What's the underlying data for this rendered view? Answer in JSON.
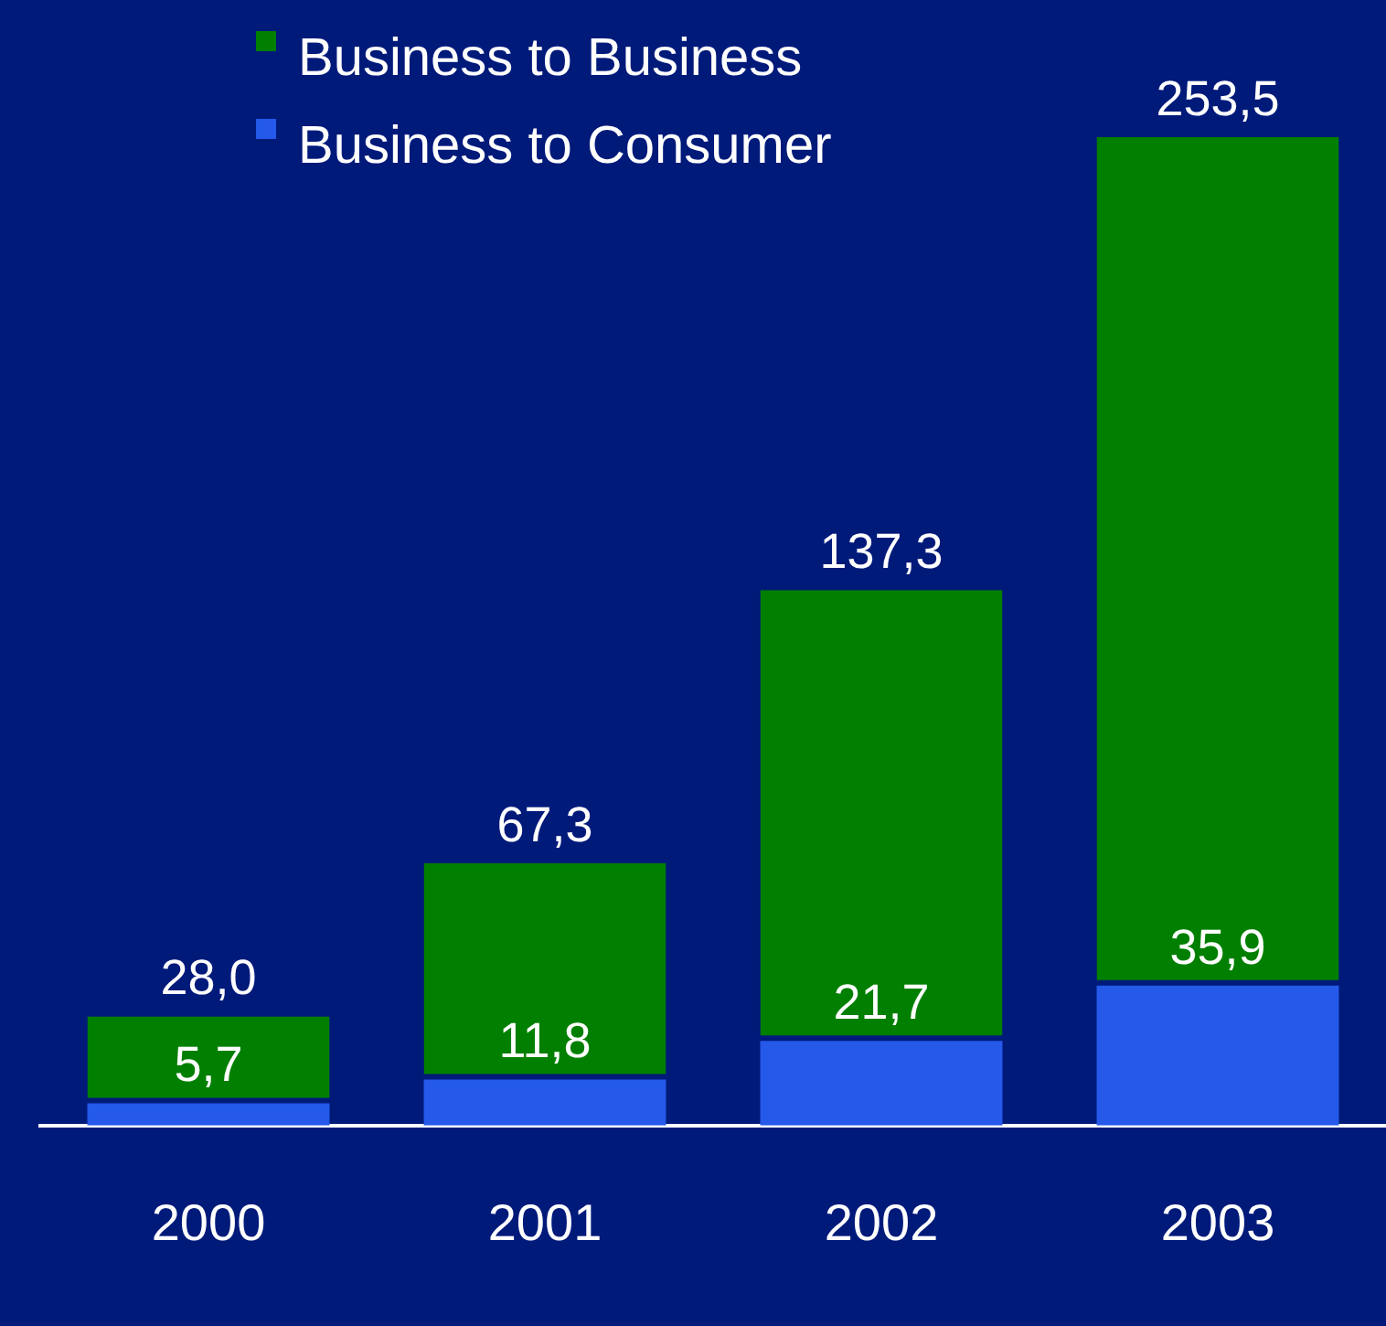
{
  "chart_data": {
    "type": "bar",
    "stacked": true,
    "categories": [
      "2000",
      "2001",
      "2002",
      "2003"
    ],
    "series": [
      {
        "name": "Business to Consumer",
        "color": "#2459ea",
        "values": [
          5.7,
          11.8,
          21.7,
          35.9
        ],
        "value_labels": [
          "5,7",
          "11,8",
          "21,7",
          "35,9"
        ]
      },
      {
        "name": "Business to Business",
        "color": "#007f00",
        "values": [
          22.3,
          55.5,
          115.6,
          217.6
        ]
      }
    ],
    "totals": [
      "28,0",
      "67,3",
      "137,3",
      "253,5"
    ],
    "legend": "top left",
    "grid": false
  }
}
